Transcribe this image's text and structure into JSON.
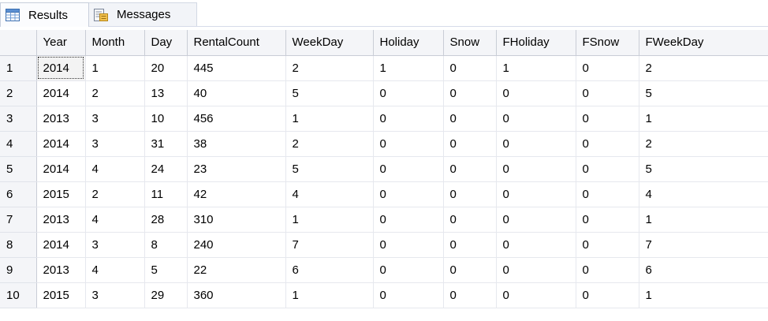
{
  "tabs": [
    {
      "label": "Results",
      "icon": "results-grid-icon",
      "active": true
    },
    {
      "label": "Messages",
      "icon": "messages-icon",
      "active": false
    }
  ],
  "grid": {
    "columns": [
      "",
      "Year",
      "Month",
      "Day",
      "RentalCount",
      "WeekDay",
      "Holiday",
      "Snow",
      "FHoliday",
      "FSnow",
      "FWeekDay"
    ],
    "rows": [
      [
        "1",
        "2014",
        "1",
        "20",
        "445",
        "2",
        "1",
        "0",
        "1",
        "0",
        "2"
      ],
      [
        "2",
        "2014",
        "2",
        "13",
        "40",
        "5",
        "0",
        "0",
        "0",
        "0",
        "5"
      ],
      [
        "3",
        "2013",
        "3",
        "10",
        "456",
        "1",
        "0",
        "0",
        "0",
        "0",
        "1"
      ],
      [
        "4",
        "2014",
        "3",
        "31",
        "38",
        "2",
        "0",
        "0",
        "0",
        "0",
        "2"
      ],
      [
        "5",
        "2014",
        "4",
        "24",
        "23",
        "5",
        "0",
        "0",
        "0",
        "0",
        "5"
      ],
      [
        "6",
        "2015",
        "2",
        "11",
        "42",
        "4",
        "0",
        "0",
        "0",
        "0",
        "4"
      ],
      [
        "7",
        "2013",
        "4",
        "28",
        "310",
        "1",
        "0",
        "0",
        "0",
        "0",
        "1"
      ],
      [
        "8",
        "2014",
        "3",
        "8",
        "240",
        "7",
        "0",
        "0",
        "0",
        "0",
        "7"
      ],
      [
        "9",
        "2013",
        "4",
        "5",
        "22",
        "6",
        "0",
        "0",
        "0",
        "0",
        "6"
      ],
      [
        "10",
        "2015",
        "3",
        "29",
        "360",
        "1",
        "0",
        "0",
        "0",
        "0",
        "1"
      ]
    ],
    "selected_cell": {
      "row": 0,
      "col": 1
    }
  },
  "colors": {
    "header_bg": "#f4f5f8",
    "grid_line": "#e6e8ee",
    "tab_border": "#c8cfdc"
  }
}
